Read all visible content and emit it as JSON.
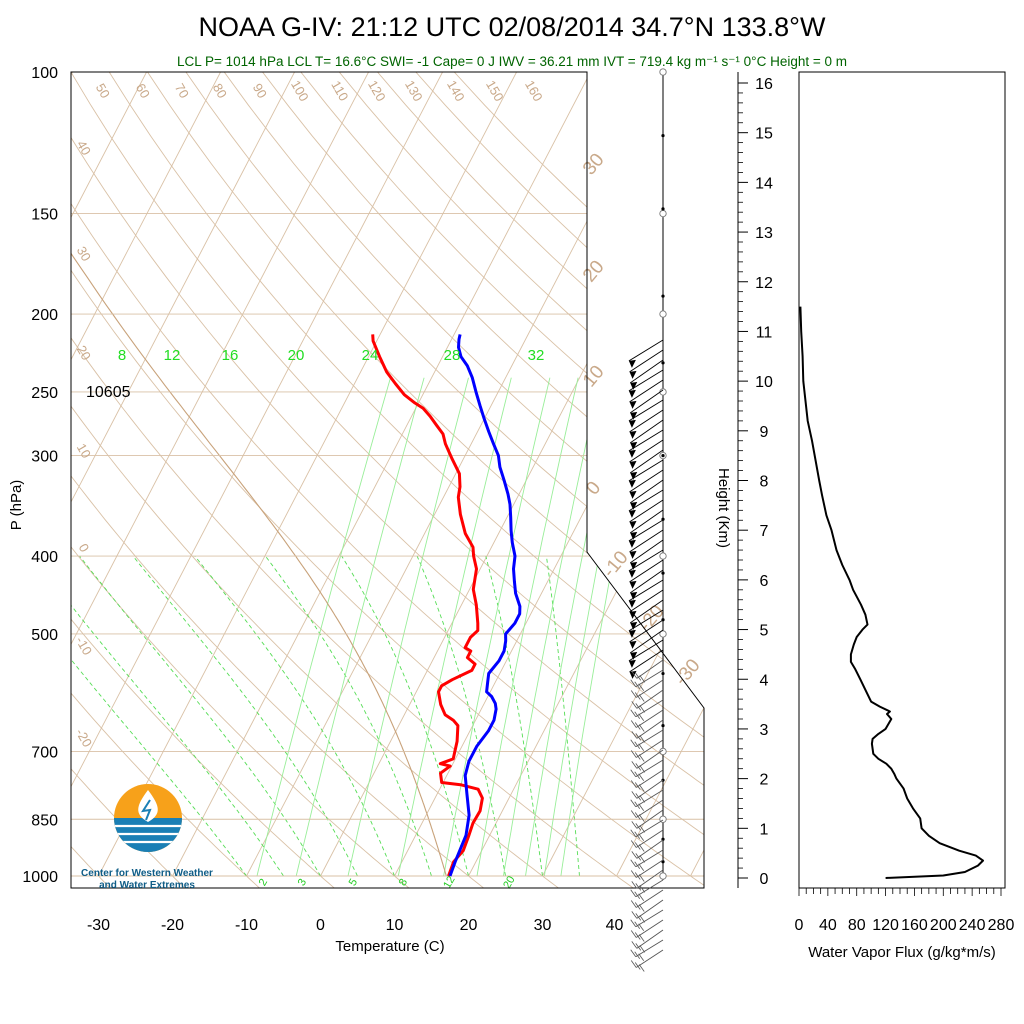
{
  "chart_data": [
    {
      "type": "line",
      "title": "NOAA G-IV: 21:12 UTC 02/08/2014  34.7°N 133.8°W",
      "subtitle": "LCL P= 1014 hPa  LCL T= 16.6°C  SWI= -1  Cape= 0 J  IWV = 36.21 mm  IVT = 719.4 kg m⁻¹ s⁻¹  0°C Height = 0 m",
      "xlabel": "Temperature (C)",
      "ylabel": "P (hPa)",
      "x_ticks": [
        -30,
        -20,
        -10,
        0,
        10,
        20,
        30,
        40
      ],
      "y_ticks": [
        100,
        150,
        200,
        250,
        300,
        400,
        500,
        700,
        850,
        1000
      ],
      "annotation": "10605",
      "isotherm_labels": [
        "50",
        "60",
        "70",
        "80",
        "90",
        "100",
        "110",
        "120",
        "130",
        "140",
        "150",
        "160",
        "40",
        "30",
        "20",
        "10",
        "0",
        "-10",
        "-20"
      ],
      "mixing_ratio_labels_top": [
        "8",
        "12",
        "16",
        "20",
        "24",
        "28",
        "32"
      ],
      "mixing_ratio_labels_bottom": [
        "2",
        "3",
        "5",
        "8",
        "12",
        "20"
      ],
      "adiabat_labels": [
        "30",
        "20",
        "10",
        "0",
        "-10",
        "-20",
        "-30"
      ],
      "series": [
        {
          "color": "#ff0000",
          "points": [
            [
              17.3,
              1000
            ],
            [
              17.0,
              960
            ],
            [
              17.5,
              930
            ],
            [
              17.2,
              890
            ],
            [
              16.9,
              860
            ],
            [
              17.0,
              830
            ],
            [
              16.4,
              800
            ],
            [
              15.2,
              780
            ],
            [
              12.5,
              770
            ],
            [
              9.8,
              765
            ],
            [
              9.0,
              745
            ],
            [
              9.8,
              730
            ],
            [
              8.3,
              725
            ],
            [
              9.7,
              715
            ],
            [
              9.0,
              680
            ],
            [
              8.0,
              650
            ],
            [
              7.0,
              640
            ],
            [
              5.5,
              630
            ],
            [
              4.2,
              612
            ],
            [
              3.0,
              590
            ],
            [
              3.0,
              580
            ],
            [
              4.0,
              570
            ],
            [
              6.0,
              555
            ],
            [
              6.0,
              545
            ],
            [
              4.5,
              535
            ],
            [
              4.5,
              525
            ],
            [
              3.5,
              520
            ],
            [
              3.5,
              505
            ],
            [
              4.0,
              495
            ],
            [
              3.5,
              485
            ],
            [
              2.0,
              460
            ],
            [
              0.5,
              440
            ],
            [
              -0.5,
              415
            ],
            [
              -1.8,
              400
            ],
            [
              -2.5,
              390
            ],
            [
              -4.5,
              375
            ],
            [
              -6.5,
              355
            ],
            [
              -8.0,
              338
            ],
            [
              -8.5,
              328
            ],
            [
              -9.5,
              316
            ],
            [
              -11.5,
              303
            ],
            [
              -13.5,
              290
            ],
            [
              -14.5,
              282
            ],
            [
              -16.0,
              275
            ],
            [
              -17.5,
              268
            ],
            [
              -19.0,
              262
            ],
            [
              -20.5,
              258
            ],
            [
              -22.5,
              252
            ],
            [
              -24.5,
              244
            ],
            [
              -26.5,
              236
            ],
            [
              -28.5,
              226
            ],
            [
              -30.5,
              216
            ],
            [
              -31.0,
              212
            ]
          ]
        },
        {
          "color": "#0000ff",
          "points": [
            [
              17.5,
              1000
            ],
            [
              17.2,
              960
            ],
            [
              16.8,
              890
            ],
            [
              15.8,
              840
            ],
            [
              14.0,
              790
            ],
            [
              12.5,
              750
            ],
            [
              12.0,
              720
            ],
            [
              12.0,
              690
            ],
            [
              12.5,
              660
            ],
            [
              12.5,
              640
            ],
            [
              12.0,
              620
            ],
            [
              11.5,
              610
            ],
            [
              10.5,
              598
            ],
            [
              9.5,
              590
            ],
            [
              9.0,
              575
            ],
            [
              8.5,
              560
            ],
            [
              9.0,
              540
            ],
            [
              9.0,
              525
            ],
            [
              8.5,
              510
            ],
            [
              8.0,
              500
            ],
            [
              8.5,
              485
            ],
            [
              8.5,
              472
            ],
            [
              8.0,
              462
            ],
            [
              6.5,
              445
            ],
            [
              5.5,
              430
            ],
            [
              4.5,
              415
            ],
            [
              3.8,
              400
            ],
            [
              2.5,
              385
            ],
            [
              1.5,
              372
            ],
            [
              0.5,
              358
            ],
            [
              -0.5,
              345
            ],
            [
              -1.5,
              335
            ],
            [
              -3.0,
              322
            ],
            [
              -4.5,
              310
            ],
            [
              -5.5,
              300
            ],
            [
              -7.0,
              290
            ],
            [
              -8.5,
              280
            ],
            [
              -10.0,
              270
            ],
            [
              -11.5,
              260
            ],
            [
              -13.0,
              250
            ],
            [
              -14.5,
              240
            ],
            [
              -16.0,
              232
            ],
            [
              -17.5,
              226
            ],
            [
              -18.5,
              220
            ],
            [
              -19.0,
              215
            ],
            [
              -19.2,
              212
            ]
          ]
        }
      ]
    },
    {
      "type": "line",
      "xlabel": "Water Vapor Flux (g/kg*m/s)",
      "ylabel": "Height (Km)",
      "x_ticks": [
        0,
        40,
        80,
        120,
        160,
        200,
        240,
        280
      ],
      "y_ticks": [
        0,
        1,
        2,
        3,
        4,
        5,
        6,
        7,
        8,
        9,
        10,
        11,
        12,
        13,
        14,
        15,
        16
      ],
      "series": [
        {
          "color": "#000000",
          "points": [
            [
              120,
              0.0
            ],
            [
              200,
              0.05
            ],
            [
              230,
              0.12
            ],
            [
              248,
              0.25
            ],
            [
              255,
              0.35
            ],
            [
              245,
              0.45
            ],
            [
              222,
              0.55
            ],
            [
              195,
              0.7
            ],
            [
              180,
              0.85
            ],
            [
              170,
              1.0
            ],
            [
              168,
              1.2
            ],
            [
              158,
              1.4
            ],
            [
              150,
              1.6
            ],
            [
              145,
              1.8
            ],
            [
              140,
              1.9
            ],
            [
              135,
              2.0
            ],
            [
              132,
              2.1
            ],
            [
              128,
              2.2
            ],
            [
              121,
              2.3
            ],
            [
              110,
              2.4
            ],
            [
              103,
              2.5
            ],
            [
              101,
              2.7
            ],
            [
              102,
              2.8
            ],
            [
              110,
              2.9
            ],
            [
              120,
              3.0
            ],
            [
              128,
              3.2
            ],
            [
              122,
              3.3
            ],
            [
              126,
              3.35
            ],
            [
              112,
              3.45
            ],
            [
              100,
              3.55
            ],
            [
              95,
              3.7
            ],
            [
              85,
              4.0
            ],
            [
              78,
              4.2
            ],
            [
              72,
              4.35
            ],
            [
              72,
              4.5
            ],
            [
              76,
              4.7
            ],
            [
              80,
              4.85
            ],
            [
              88,
              5.0
            ],
            [
              95,
              5.1
            ],
            [
              92,
              5.3
            ],
            [
              86,
              5.5
            ],
            [
              75,
              5.8
            ],
            [
              70,
              6.0
            ],
            [
              60,
              6.3
            ],
            [
              52,
              6.6
            ],
            [
              45,
              7.0
            ],
            [
              38,
              7.3
            ],
            [
              32,
              7.7
            ],
            [
              28,
              8.0
            ],
            [
              23,
              8.4
            ],
            [
              18,
              8.8
            ],
            [
              12,
              9.2
            ],
            [
              9,
              9.6
            ],
            [
              6,
              10.0
            ],
            [
              5,
              10.5
            ],
            [
              3,
              11.0
            ],
            [
              2,
              11.5
            ]
          ]
        }
      ]
    }
  ],
  "logo": {
    "line1": "Center for Western Weather",
    "line2": "and Water Extremes",
    "colors": {
      "orange": "#f7a11a",
      "blue": "#1a7fb5"
    }
  }
}
